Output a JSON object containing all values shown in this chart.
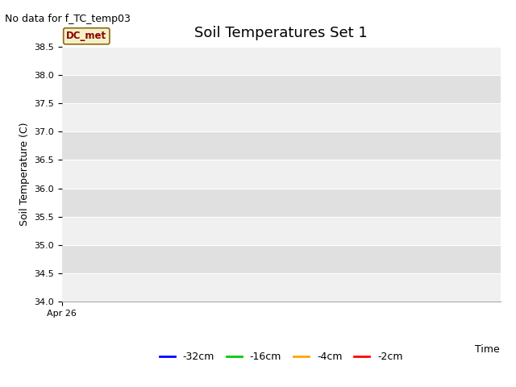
{
  "title": "Soil Temperatures Set 1",
  "no_data_text": "No data for f_TC_temp03",
  "ylabel": "Soil Temperature (C)",
  "xlabel": "Time",
  "ylim": [
    34.0,
    38.5
  ],
  "yticks": [
    34.0,
    34.5,
    35.0,
    35.5,
    36.0,
    36.5,
    37.0,
    37.5,
    38.0,
    38.5
  ],
  "xlim_label": "Apr 26",
  "dc_met_label": "DC_met",
  "dc_met_box_facecolor": "#f5f0c8",
  "dc_met_box_edgecolor": "#8b6914",
  "dc_met_text_color": "#8b0000",
  "plot_bg_color": "#ebebeb",
  "band_color_dark": "#e0e0e0",
  "band_color_light": "#f0f0f0",
  "fig_bg_color": "#ffffff",
  "legend_entries": [
    {
      "label": "-32cm",
      "color": "#0000ff"
    },
    {
      "label": "-16cm",
      "color": "#00cc00"
    },
    {
      "label": "-4cm",
      "color": "#ffa500"
    },
    {
      "label": "-2cm",
      "color": "#ff0000"
    }
  ],
  "title_fontsize": 13,
  "axis_label_fontsize": 9,
  "tick_fontsize": 8,
  "legend_fontsize": 9,
  "no_data_fontsize": 9
}
